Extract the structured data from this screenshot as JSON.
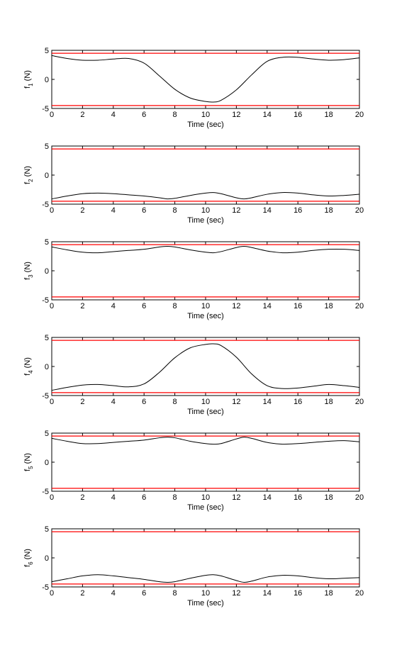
{
  "chart_data": [
    {
      "type": "line",
      "xlabel": "Time (sec)",
      "ylabel": "f",
      "ylabel_sub": "1",
      "ylabel_unit": " (N)",
      "xlim": [
        0,
        20
      ],
      "ylim": [
        -5,
        5
      ],
      "xticks": [
        "0",
        "2",
        "4",
        "6",
        "8",
        "10",
        "12",
        "14",
        "16",
        "18",
        "20"
      ],
      "yticks": [
        "5",
        "0",
        "-5"
      ],
      "limits": [
        4.5,
        -4.5
      ],
      "limit_color": "#ff0000",
      "line_color": "#000000",
      "grid": false,
      "x": [
        0,
        1,
        2,
        3,
        4,
        5,
        6,
        7,
        8,
        9,
        10,
        10.5,
        11,
        12,
        13,
        14,
        15,
        16,
        17,
        18,
        19,
        20
      ],
      "y": [
        4.1,
        3.6,
        3.3,
        3.3,
        3.5,
        3.6,
        2.8,
        0.6,
        -1.7,
        -3.2,
        -3.8,
        -3.9,
        -3.6,
        -1.8,
        0.8,
        3.1,
        3.8,
        3.8,
        3.5,
        3.3,
        3.4,
        3.7
      ]
    },
    {
      "type": "line",
      "xlabel": "Time (sec)",
      "ylabel": "f",
      "ylabel_sub": "2",
      "ylabel_unit": " (N)",
      "xlim": [
        0,
        20
      ],
      "ylim": [
        -5,
        5
      ],
      "xticks": [
        "0",
        "2",
        "4",
        "6",
        "8",
        "10",
        "12",
        "14",
        "16",
        "18",
        "20"
      ],
      "yticks": [
        "5",
        "0",
        "-5"
      ],
      "limits": [
        4.5,
        -4.5
      ],
      "limit_color": "#ff0000",
      "line_color": "#000000",
      "grid": false,
      "x": [
        0,
        1,
        2,
        3,
        4,
        5,
        6,
        7,
        7.5,
        8,
        9,
        10,
        10.5,
        11,
        12,
        12.5,
        13,
        14,
        15,
        16,
        17,
        18,
        19,
        20
      ],
      "y": [
        -4.1,
        -3.6,
        -3.2,
        -3.1,
        -3.2,
        -3.4,
        -3.6,
        -3.9,
        -4.1,
        -4.0,
        -3.5,
        -3.1,
        -3.0,
        -3.2,
        -3.9,
        -4.1,
        -3.9,
        -3.3,
        -3.0,
        -3.1,
        -3.4,
        -3.6,
        -3.5,
        -3.3
      ]
    },
    {
      "type": "line",
      "xlabel": "Time (sec)",
      "ylabel": "f",
      "ylabel_sub": "3",
      "ylabel_unit": " (N)",
      "xlim": [
        0,
        20
      ],
      "ylim": [
        -5,
        5
      ],
      "xticks": [
        "0",
        "2",
        "4",
        "6",
        "8",
        "10",
        "12",
        "14",
        "16",
        "18",
        "20"
      ],
      "yticks": [
        "5",
        "0",
        "-5"
      ],
      "limits": [
        4.5,
        -4.5
      ],
      "limit_color": "#ff0000",
      "line_color": "#000000",
      "grid": false,
      "x": [
        0,
        1,
        2,
        3,
        4,
        5,
        6,
        7,
        7.5,
        8,
        9,
        10,
        10.5,
        11,
        12,
        12.5,
        13,
        14,
        15,
        16,
        17,
        18,
        19,
        20
      ],
      "y": [
        4.1,
        3.6,
        3.2,
        3.1,
        3.3,
        3.5,
        3.7,
        4.1,
        4.2,
        4.1,
        3.6,
        3.2,
        3.1,
        3.3,
        4.0,
        4.2,
        4.0,
        3.4,
        3.1,
        3.2,
        3.5,
        3.7,
        3.7,
        3.5
      ]
    },
    {
      "type": "line",
      "xlabel": "Time (sec)",
      "ylabel": "f",
      "ylabel_sub": "4",
      "ylabel_unit": " (N)",
      "xlim": [
        0,
        20
      ],
      "ylim": [
        -5,
        5
      ],
      "xticks": [
        "0",
        "2",
        "4",
        "6",
        "8",
        "10",
        "12",
        "14",
        "16",
        "18",
        "20"
      ],
      "yticks": [
        "5",
        "0",
        "-5"
      ],
      "limits": [
        4.5,
        -4.5
      ],
      "limit_color": "#ff0000",
      "line_color": "#000000",
      "grid": false,
      "x": [
        0,
        1,
        2,
        3,
        4,
        5,
        6,
        7,
        8,
        9,
        10,
        10.5,
        11,
        12,
        13,
        14,
        15,
        16,
        17,
        18,
        19,
        20
      ],
      "y": [
        -4.1,
        -3.6,
        -3.2,
        -3.1,
        -3.3,
        -3.5,
        -3.0,
        -1.0,
        1.5,
        3.2,
        3.8,
        3.9,
        3.6,
        1.6,
        -1.3,
        -3.3,
        -3.8,
        -3.7,
        -3.4,
        -3.1,
        -3.3,
        -3.6
      ]
    },
    {
      "type": "line",
      "xlabel": "Time (sec)",
      "ylabel": "f",
      "ylabel_sub": "5",
      "ylabel_unit": " (N)",
      "xlim": [
        0,
        20
      ],
      "ylim": [
        -5,
        5
      ],
      "xticks": [
        "0",
        "2",
        "4",
        "6",
        "8",
        "10",
        "12",
        "14",
        "16",
        "18",
        "20"
      ],
      "yticks": [
        "5",
        "0",
        "-5"
      ],
      "limits": [
        4.5,
        -4.5
      ],
      "limit_color": "#ff0000",
      "line_color": "#000000",
      "grid": false,
      "x": [
        0,
        1,
        2,
        3,
        4,
        5,
        6,
        7,
        7.5,
        8,
        9,
        10,
        10.5,
        11,
        12,
        12.5,
        13,
        14,
        15,
        16,
        17,
        18,
        19,
        20
      ],
      "y": [
        4.1,
        3.6,
        3.2,
        3.2,
        3.4,
        3.6,
        3.8,
        4.2,
        4.3,
        4.2,
        3.6,
        3.2,
        3.1,
        3.2,
        4.0,
        4.3,
        4.1,
        3.4,
        3.1,
        3.2,
        3.4,
        3.6,
        3.7,
        3.5
      ]
    },
    {
      "type": "line",
      "xlabel": "Time (sec)",
      "ylabel": "f",
      "ylabel_sub": "6",
      "ylabel_unit": " (N)",
      "xlim": [
        0,
        20
      ],
      "ylim": [
        -5,
        5
      ],
      "xticks": [
        "0",
        "2",
        "4",
        "6",
        "8",
        "10",
        "12",
        "14",
        "16",
        "18",
        "20"
      ],
      "yticks": [
        "5",
        "0",
        "-5"
      ],
      "limits": [
        4.5,
        -4.5
      ],
      "limit_color": "#ff0000",
      "line_color": "#000000",
      "grid": false,
      "x": [
        0,
        1,
        2,
        3,
        4,
        5,
        6,
        7,
        7.5,
        8,
        9,
        10,
        10.5,
        11,
        12,
        12.5,
        13,
        14,
        15,
        16,
        17,
        18,
        19,
        20
      ],
      "y": [
        -4.1,
        -3.6,
        -3.1,
        -2.9,
        -3.1,
        -3.4,
        -3.7,
        -4.1,
        -4.2,
        -4.1,
        -3.5,
        -3.0,
        -2.9,
        -3.1,
        -3.9,
        -4.2,
        -4.0,
        -3.3,
        -3.0,
        -3.1,
        -3.4,
        -3.6,
        -3.5,
        -3.4
      ]
    }
  ]
}
